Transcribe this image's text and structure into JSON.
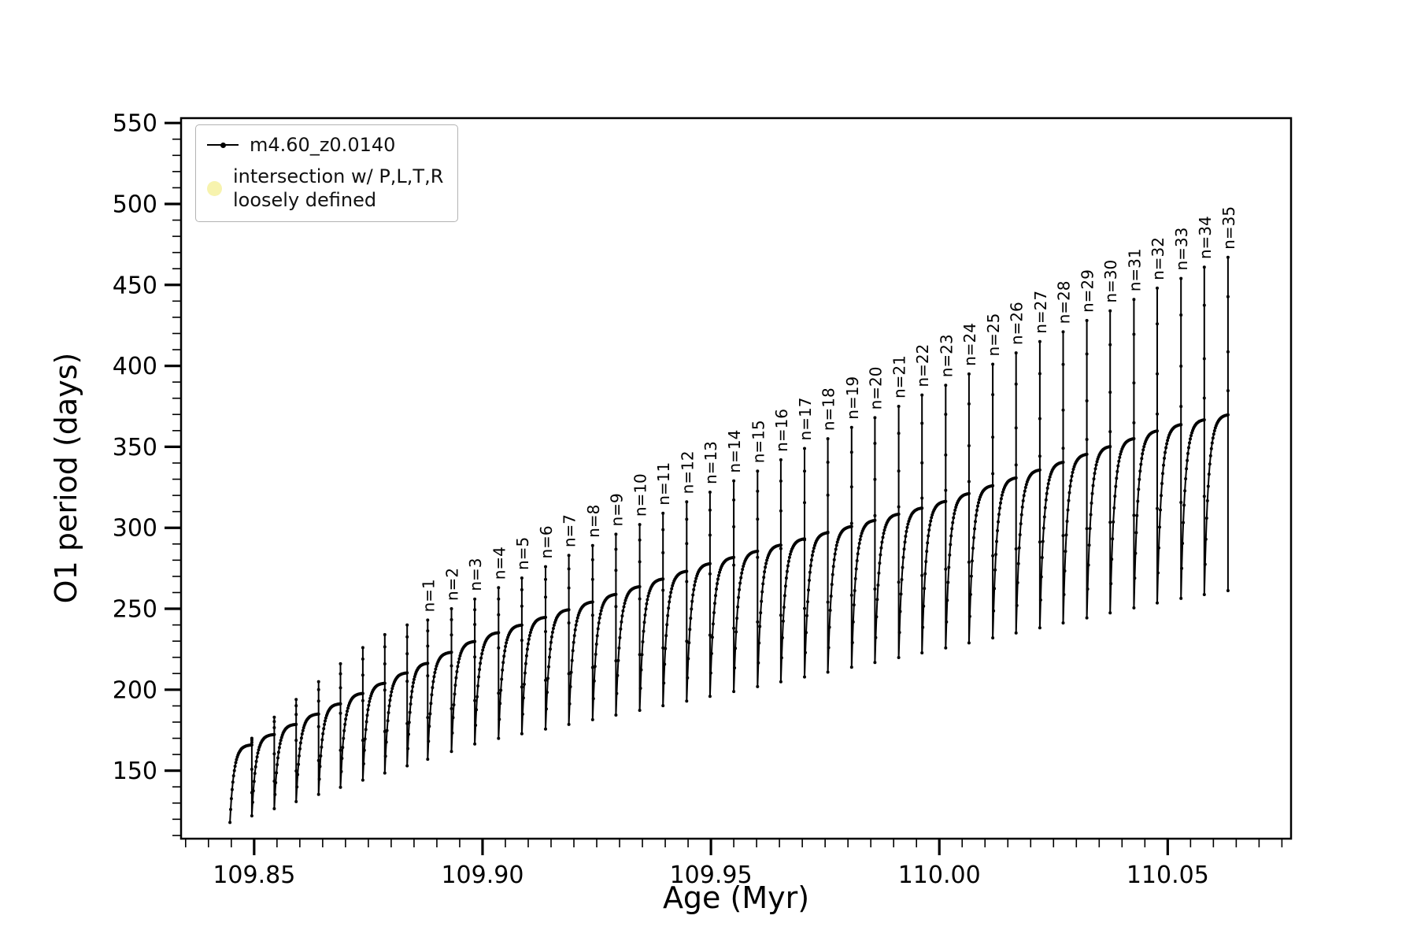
{
  "chart_data": {
    "type": "line",
    "title": "",
    "xlabel": "Age (Myr)",
    "ylabel": "O1 period (days)",
    "xlim": [
      109.834,
      110.077
    ],
    "ylim": [
      108,
      553
    ],
    "x_major_ticks": [
      109.85,
      109.9,
      109.95,
      110.0,
      110.05
    ],
    "x_minor_step": 0.005,
    "y_major_ticks": [
      150,
      200,
      250,
      300,
      350,
      400,
      450,
      500,
      550
    ],
    "y_minor_step": 10,
    "grid": false,
    "legend": {
      "position": "upper-left",
      "entries": [
        {
          "label": "m4.60_z0.0140",
          "marker": "line-dot",
          "color": "#000000"
        },
        {
          "label": "intersection w/ P,L,T,R\nloosely defined",
          "marker": "dot",
          "color": "#f7f3ae"
        }
      ]
    },
    "series_color": "#000000",
    "x_start": 109.8447,
    "plateau_anchors": [
      [
        109.845,
        160
      ],
      [
        109.9,
        232
      ],
      [
        109.95,
        278
      ],
      [
        110.0,
        315
      ],
      [
        110.05,
        362
      ],
      [
        110.067,
        372
      ]
    ],
    "dip_anchors": [
      [
        109.845,
        118
      ],
      [
        109.9,
        168
      ],
      [
        109.95,
        196
      ],
      [
        110.0,
        225
      ],
      [
        110.05,
        255
      ],
      [
        110.067,
        263
      ]
    ],
    "cycles": [
      {
        "label": null,
        "x_end": 109.8495,
        "spike": 170
      },
      {
        "label": null,
        "x_end": 109.8544,
        "spike": 183
      },
      {
        "label": null,
        "x_end": 109.8592,
        "spike": 194
      },
      {
        "label": null,
        "x_end": 109.8641,
        "spike": 205
      },
      {
        "label": null,
        "x_end": 109.8689,
        "spike": 216
      },
      {
        "label": null,
        "x_end": 109.8738,
        "spike": 226
      },
      {
        "label": null,
        "x_end": 109.8786,
        "spike": 234
      },
      {
        "label": null,
        "x_end": 109.8835,
        "spike": 240
      },
      {
        "label": "n=1",
        "x_end": 109.888,
        "spike": 243
      },
      {
        "label": "n=2",
        "x_end": 109.8932,
        "spike": 250
      },
      {
        "label": "n=3",
        "x_end": 109.8983,
        "spike": 256
      },
      {
        "label": "n=4",
        "x_end": 109.9035,
        "spike": 263
      },
      {
        "label": "n=5",
        "x_end": 109.9086,
        "spike": 269
      },
      {
        "label": "n=6",
        "x_end": 109.9138,
        "spike": 276
      },
      {
        "label": "n=7",
        "x_end": 109.9189,
        "spike": 283
      },
      {
        "label": "n=8",
        "x_end": 109.9241,
        "spike": 289
      },
      {
        "label": "n=9",
        "x_end": 109.9292,
        "spike": 296
      },
      {
        "label": "n=10",
        "x_end": 109.9344,
        "spike": 302
      },
      {
        "label": "n=11",
        "x_end": 109.9395,
        "spike": 309
      },
      {
        "label": "n=12",
        "x_end": 109.9447,
        "spike": 316
      },
      {
        "label": "n=13",
        "x_end": 109.9498,
        "spike": 322
      },
      {
        "label": "n=14",
        "x_end": 109.955,
        "spike": 329
      },
      {
        "label": "n=15",
        "x_end": 109.9602,
        "spike": 335
      },
      {
        "label": "n=16",
        "x_end": 109.9653,
        "spike": 342
      },
      {
        "label": "n=17",
        "x_end": 109.9705,
        "spike": 349
      },
      {
        "label": "n=18",
        "x_end": 109.9756,
        "spike": 355
      },
      {
        "label": "n=19",
        "x_end": 109.9808,
        "spike": 362
      },
      {
        "label": "n=20",
        "x_end": 109.9859,
        "spike": 368
      },
      {
        "label": "n=21",
        "x_end": 109.9911,
        "spike": 375
      },
      {
        "label": "n=22",
        "x_end": 109.9962,
        "spike": 382
      },
      {
        "label": "n=23",
        "x_end": 110.0014,
        "spike": 388
      },
      {
        "label": "n=24",
        "x_end": 110.0065,
        "spike": 395
      },
      {
        "label": "n=25",
        "x_end": 110.0117,
        "spike": 401
      },
      {
        "label": "n=26",
        "x_end": 110.0168,
        "spike": 408
      },
      {
        "label": "n=27",
        "x_end": 110.022,
        "spike": 415
      },
      {
        "label": "n=28",
        "x_end": 110.0271,
        "spike": 421
      },
      {
        "label": "n=29",
        "x_end": 110.0323,
        "spike": 428
      },
      {
        "label": "n=30",
        "x_end": 110.0374,
        "spike": 434
      },
      {
        "label": "n=31",
        "x_end": 110.0426,
        "spike": 441
      },
      {
        "label": "n=32",
        "x_end": 110.0477,
        "spike": 448
      },
      {
        "label": "n=33",
        "x_end": 110.0529,
        "spike": 454
      },
      {
        "label": "n=34",
        "x_end": 110.058,
        "spike": 461
      },
      {
        "label": "n=35",
        "x_end": 110.0632,
        "spike": 467
      }
    ]
  }
}
